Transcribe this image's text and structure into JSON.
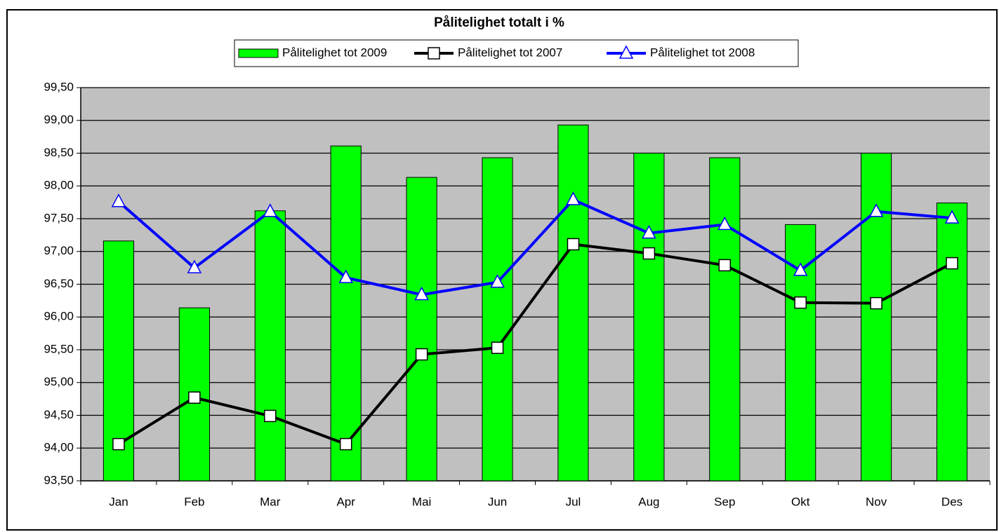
{
  "chart_data": {
    "type": "bar",
    "title": "Pålitelighet totalt i  %",
    "categories": [
      "Jan",
      "Feb",
      "Mar",
      "Apr",
      "Mai",
      "Jun",
      "Jul",
      "Aug",
      "Sep",
      "Okt",
      "Nov",
      "Des"
    ],
    "series": [
      {
        "name": "Pålitelighet tot 2009",
        "type": "bar",
        "color": "#00ff00",
        "values": [
          97.16,
          96.14,
          97.62,
          98.61,
          98.13,
          98.43,
          98.93,
          98.5,
          98.43,
          97.41,
          98.5,
          97.74
        ]
      },
      {
        "name": "Pålitelighet tot 2007",
        "type": "line",
        "marker": "square",
        "color": "#000000",
        "values": [
          94.06,
          94.77,
          94.49,
          94.06,
          95.43,
          95.53,
          97.11,
          96.97,
          96.79,
          96.22,
          96.21,
          96.82
        ]
      },
      {
        "name": "Pålitelighet tot 2008",
        "type": "line",
        "marker": "triangle",
        "color": "#0000ff",
        "values": [
          97.76,
          96.75,
          97.61,
          96.6,
          96.34,
          96.53,
          97.79,
          97.28,
          97.41,
          96.71,
          97.61,
          97.51
        ]
      }
    ],
    "ylim": [
      93.5,
      99.5
    ],
    "yticks": [
      {
        "value": 93.5,
        "label": "93,50"
      },
      {
        "value": 94,
        "label": "94,00"
      },
      {
        "value": 94.5,
        "label": "94,50"
      },
      {
        "value": 95,
        "label": "95,00"
      },
      {
        "value": 95.5,
        "label": "95,50"
      },
      {
        "value": 96,
        "label": "96,00"
      },
      {
        "value": 96.5,
        "label": "96,50"
      },
      {
        "value": 97,
        "label": "97,00"
      },
      {
        "value": 97.5,
        "label": "97,50"
      },
      {
        "value": 98,
        "label": "98,00"
      },
      {
        "value": 98.5,
        "label": "98,50"
      },
      {
        "value": 99,
        "label": "99,00"
      },
      {
        "value": 99.5,
        "label": "99,50"
      }
    ],
    "grid": true,
    "legend": "top",
    "plot_background": "#c0c0c0"
  }
}
